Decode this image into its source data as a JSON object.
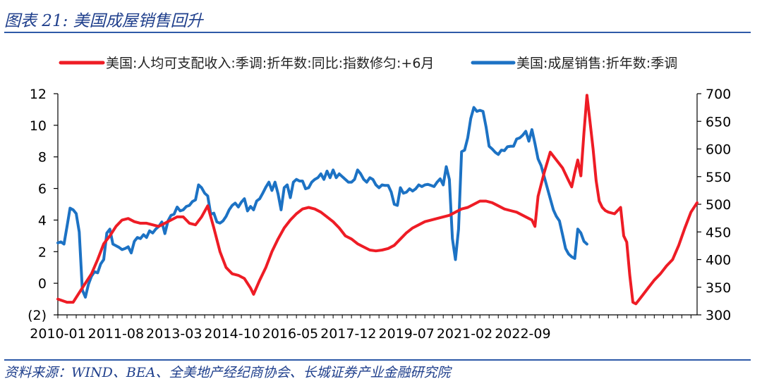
{
  "figure": {
    "title": "图表 21:  美国成屋销售回升",
    "source": "资料来源：WIND、BEA、全美地产经纪商协会、长城证券产业金融研究院"
  },
  "chart_data": {
    "type": "line",
    "dual_axis": true,
    "title": "图表 21: 美国成屋销售回升",
    "xlabel": "",
    "ylabel_left": "",
    "ylabel_right": "",
    "x_tick_labels": [
      "2010-01",
      "2011-08",
      "2013-03",
      "2014-10",
      "2016-05",
      "2017-12",
      "2019-07",
      "2021-02",
      "2022-09"
    ],
    "x_tick_positions_month_index": [
      0,
      19,
      38,
      57,
      76,
      95,
      114,
      133,
      152
    ],
    "ylim_left": [
      -2,
      12
    ],
    "yticks_left": [
      -2,
      0,
      2,
      4,
      6,
      8,
      10,
      12
    ],
    "ytick_labels_left": [
      "(2)",
      "0",
      "2",
      "4",
      "6",
      "8",
      "10",
      "12"
    ],
    "ylim_right": [
      300,
      700
    ],
    "yticks_right": [
      300,
      350,
      400,
      450,
      500,
      550,
      600,
      650,
      700
    ],
    "ytick_labels_right": [
      "300",
      "350",
      "400",
      "450",
      "500",
      "550",
      "600",
      "650",
      "700"
    ],
    "legend_location": "top",
    "series": [
      {
        "name": "美国:人均可支配收入:季调:折年数:同比:指数修匀:+6月",
        "color": "#ee1c25",
        "axis": "left",
        "points": [
          [
            0,
            -1.0
          ],
          [
            3,
            -1.2
          ],
          [
            5,
            -1.2
          ],
          [
            7,
            -0.6
          ],
          [
            9,
            0.0
          ],
          [
            11,
            0.6
          ],
          [
            13,
            1.5
          ],
          [
            15,
            2.5
          ],
          [
            17,
            3.0
          ],
          [
            19,
            3.6
          ],
          [
            21,
            4.0
          ],
          [
            23,
            4.1
          ],
          [
            25,
            3.9
          ],
          [
            27,
            3.8
          ],
          [
            29,
            3.8
          ],
          [
            31,
            3.7
          ],
          [
            33,
            3.6
          ],
          [
            35,
            3.8
          ],
          [
            37,
            4.0
          ],
          [
            39,
            4.2
          ],
          [
            41,
            4.2
          ],
          [
            43,
            3.8
          ],
          [
            45,
            3.7
          ],
          [
            47,
            4.2
          ],
          [
            49,
            4.9
          ],
          [
            51,
            3.5
          ],
          [
            53,
            2.0
          ],
          [
            55,
            1.0
          ],
          [
            57,
            0.6
          ],
          [
            59,
            0.5
          ],
          [
            61,
            0.3
          ],
          [
            63,
            -0.3
          ],
          [
            64,
            -0.7
          ],
          [
            66,
            0.2
          ],
          [
            68,
            1.0
          ],
          [
            70,
            2.0
          ],
          [
            72,
            2.8
          ],
          [
            74,
            3.5
          ],
          [
            76,
            4.0
          ],
          [
            78,
            4.4
          ],
          [
            80,
            4.7
          ],
          [
            82,
            4.8
          ],
          [
            84,
            4.7
          ],
          [
            86,
            4.5
          ],
          [
            88,
            4.2
          ],
          [
            90,
            3.9
          ],
          [
            92,
            3.5
          ],
          [
            94,
            3.0
          ],
          [
            96,
            2.8
          ],
          [
            98,
            2.5
          ],
          [
            100,
            2.3
          ],
          [
            102,
            2.1
          ],
          [
            104,
            2.05
          ],
          [
            106,
            2.1
          ],
          [
            108,
            2.2
          ],
          [
            110,
            2.4
          ],
          [
            112,
            2.8
          ],
          [
            114,
            3.2
          ],
          [
            116,
            3.5
          ],
          [
            118,
            3.7
          ],
          [
            120,
            3.9
          ],
          [
            122,
            4.0
          ],
          [
            124,
            4.1
          ],
          [
            126,
            4.2
          ],
          [
            128,
            4.3
          ],
          [
            130,
            4.5
          ],
          [
            132,
            4.7
          ],
          [
            134,
            4.8
          ],
          [
            136,
            5.0
          ],
          [
            138,
            5.2
          ],
          [
            140,
            5.2
          ],
          [
            142,
            5.1
          ],
          [
            144,
            4.9
          ],
          [
            146,
            4.7
          ],
          [
            148,
            4.6
          ],
          [
            150,
            4.5
          ],
          [
            152,
            4.3
          ],
          [
            154,
            4.1
          ],
          [
            155,
            4.0
          ],
          [
            156,
            3.6
          ],
          [
            157,
            5.5
          ],
          [
            159,
            7.0
          ],
          [
            161,
            8.3
          ],
          [
            163,
            7.8
          ],
          [
            165,
            7.3
          ],
          [
            167,
            6.5
          ],
          [
            168,
            6.1
          ],
          [
            169,
            7.0
          ],
          [
            170,
            7.8
          ],
          [
            171,
            6.8
          ],
          [
            172,
            9.5
          ],
          [
            173,
            11.9
          ],
          [
            174,
            10.2
          ],
          [
            175,
            8.5
          ],
          [
            176,
            6.5
          ],
          [
            177,
            5.2
          ],
          [
            178,
            4.8
          ],
          [
            179,
            4.6
          ],
          [
            180,
            4.5
          ],
          [
            182,
            4.4
          ],
          [
            183,
            4.6
          ],
          [
            184,
            4.8
          ],
          [
            185,
            3.0
          ],
          [
            186,
            2.6
          ],
          [
            187,
            0.5
          ],
          [
            188,
            -1.2
          ],
          [
            189,
            -1.3
          ],
          [
            191,
            -0.8
          ],
          [
            193,
            -0.3
          ],
          [
            195,
            0.2
          ],
          [
            197,
            0.6
          ],
          [
            199,
            1.1
          ],
          [
            201,
            1.5
          ],
          [
            203,
            2.4
          ],
          [
            205,
            3.5
          ],
          [
            207,
            4.5
          ],
          [
            209,
            5.1
          ]
        ]
      },
      {
        "name": "美国:成屋销售:折年数:季调",
        "color": "#1c72c4",
        "axis": "right",
        "points": [
          [
            0,
            430
          ],
          [
            1,
            432
          ],
          [
            2,
            428
          ],
          [
            3,
            460
          ],
          [
            4,
            493
          ],
          [
            5,
            490
          ],
          [
            6,
            483
          ],
          [
            7,
            450
          ],
          [
            8,
            345
          ],
          [
            9,
            332
          ],
          [
            10,
            355
          ],
          [
            11,
            370
          ],
          [
            12,
            378
          ],
          [
            13,
            376
          ],
          [
            14,
            392
          ],
          [
            15,
            400
          ],
          [
            16,
            448
          ],
          [
            17,
            455
          ],
          [
            18,
            428
          ],
          [
            19,
            425
          ],
          [
            20,
            422
          ],
          [
            21,
            418
          ],
          [
            22,
            420
          ],
          [
            23,
            423
          ],
          [
            24,
            412
          ],
          [
            25,
            433
          ],
          [
            26,
            440
          ],
          [
            27,
            438
          ],
          [
            28,
            445
          ],
          [
            29,
            440
          ],
          [
            30,
            452
          ],
          [
            31,
            448
          ],
          [
            32,
            455
          ],
          [
            33,
            460
          ],
          [
            34,
            468
          ],
          [
            35,
            447
          ],
          [
            36,
            470
          ],
          [
            37,
            480
          ],
          [
            38,
            482
          ],
          [
            39,
            495
          ],
          [
            40,
            488
          ],
          [
            41,
            490
          ],
          [
            42,
            496
          ],
          [
            43,
            498
          ],
          [
            44,
            505
          ],
          [
            45,
            508
          ],
          [
            46,
            535
          ],
          [
            47,
            530
          ],
          [
            48,
            520
          ],
          [
            49,
            515
          ],
          [
            50,
            482
          ],
          [
            51,
            484
          ],
          [
            52,
            468
          ],
          [
            53,
            466
          ],
          [
            54,
            470
          ],
          [
            55,
            478
          ],
          [
            56,
            490
          ],
          [
            57,
            498
          ],
          [
            58,
            502
          ],
          [
            59,
            495
          ],
          [
            60,
            504
          ],
          [
            61,
            510
          ],
          [
            62,
            488
          ],
          [
            63,
            496
          ],
          [
            64,
            490
          ],
          [
            65,
            506
          ],
          [
            66,
            510
          ],
          [
            67,
            520
          ],
          [
            68,
            531
          ],
          [
            69,
            540
          ],
          [
            70,
            525
          ],
          [
            71,
            540
          ],
          [
            72,
            519
          ],
          [
            73,
            490
          ],
          [
            74,
            530
          ],
          [
            75,
            535
          ],
          [
            76,
            512
          ],
          [
            77,
            540
          ],
          [
            78,
            545
          ],
          [
            79,
            542
          ],
          [
            80,
            542
          ],
          [
            81,
            528
          ],
          [
            82,
            530
          ],
          [
            83,
            540
          ],
          [
            84,
            545
          ],
          [
            85,
            548
          ],
          [
            86,
            555
          ],
          [
            87,
            545
          ],
          [
            88,
            560
          ],
          [
            89,
            548
          ],
          [
            90,
            562
          ],
          [
            91,
            548
          ],
          [
            92,
            555
          ],
          [
            93,
            550
          ],
          [
            94,
            545
          ],
          [
            95,
            540
          ],
          [
            96,
            540
          ],
          [
            97,
            545
          ],
          [
            98,
            562
          ],
          [
            99,
            555
          ],
          [
            100,
            545
          ],
          [
            101,
            540
          ],
          [
            102,
            548
          ],
          [
            103,
            545
          ],
          [
            104,
            535
          ],
          [
            105,
            530
          ],
          [
            106,
            535
          ],
          [
            107,
            534
          ],
          [
            108,
            534
          ],
          [
            109,
            522
          ],
          [
            110,
            500
          ],
          [
            111,
            498
          ],
          [
            112,
            530
          ],
          [
            113,
            520
          ],
          [
            114,
            522
          ],
          [
            115,
            528
          ],
          [
            116,
            524
          ],
          [
            117,
            528
          ],
          [
            118,
            535
          ],
          [
            119,
            532
          ],
          [
            120,
            535
          ],
          [
            121,
            536
          ],
          [
            122,
            534
          ],
          [
            123,
            532
          ],
          [
            124,
            540
          ],
          [
            125,
            546
          ],
          [
            126,
            535
          ],
          [
            127,
            568
          ],
          [
            128,
            545
          ],
          [
            129,
            438
          ],
          [
            130,
            400
          ],
          [
            131,
            455
          ],
          [
            132,
            595
          ],
          [
            133,
            598
          ],
          [
            134,
            620
          ],
          [
            135,
            655
          ],
          [
            136,
            675
          ],
          [
            137,
            668
          ],
          [
            138,
            670
          ],
          [
            139,
            668
          ],
          [
            140,
            640
          ],
          [
            141,
            605
          ],
          [
            142,
            600
          ],
          [
            143,
            594
          ],
          [
            144,
            590
          ],
          [
            145,
            598
          ],
          [
            146,
            597
          ],
          [
            147,
            604
          ],
          [
            148,
            605
          ],
          [
            149,
            605
          ],
          [
            150,
            618
          ],
          [
            151,
            620
          ],
          [
            152,
            625
          ],
          [
            153,
            632
          ],
          [
            154,
            614
          ],
          [
            155,
            635
          ],
          [
            156,
            610
          ],
          [
            157,
            582
          ],
          [
            158,
            570
          ],
          [
            159,
            550
          ],
          [
            160,
            530
          ],
          [
            161,
            510
          ],
          [
            162,
            490
          ],
          [
            163,
            478
          ],
          [
            164,
            470
          ],
          [
            165,
            445
          ],
          [
            166,
            420
          ],
          [
            167,
            410
          ],
          [
            168,
            405
          ],
          [
            169,
            402
          ],
          [
            170,
            455
          ],
          [
            171,
            448
          ],
          [
            172,
            433
          ],
          [
            173,
            428
          ]
        ]
      }
    ]
  }
}
